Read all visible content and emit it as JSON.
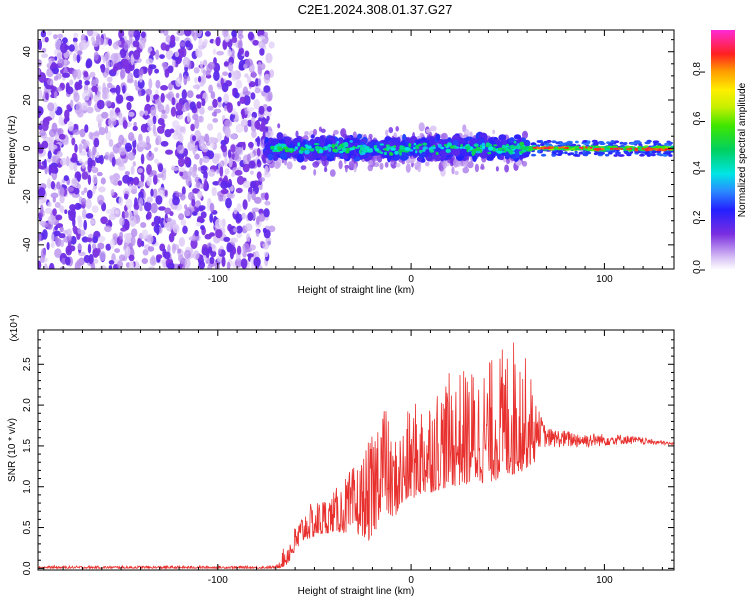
{
  "title": "C2E1.2024.308.01.37.G27",
  "chart_data": [
    {
      "type": "heatmap",
      "xlabel": "Height of straight line (km)",
      "ylabel": "Frequency (Hz)",
      "xlim": [
        -193,
        136
      ],
      "ylim": [
        -50,
        49
      ],
      "xticks": [
        "-100",
        "0",
        "100"
      ],
      "yticks": [
        "-40",
        "-20",
        "0",
        "20",
        "40"
      ],
      "colorbar": {
        "label": "Normalized spectral amplitude",
        "range": [
          0,
          0.97
        ],
        "ticks": [
          "0.0",
          "0.2",
          "0.4",
          "0.6",
          "0.8"
        ]
      },
      "regions": [
        {
          "x": [
            -193,
            -75
          ],
          "freq_spread": [
            -50,
            49
          ],
          "amplitude": [
            0.0,
            0.18
          ],
          "pattern": "random noise"
        },
        {
          "x": [
            -75,
            60
          ],
          "freq_spread": [
            -12,
            10
          ],
          "amplitude": [
            0.1,
            0.55
          ],
          "pattern": "noisy signal band"
        },
        {
          "x": [
            60,
            136
          ],
          "freq_spread": [
            -3,
            3
          ],
          "amplitude": [
            0.5,
            0.95
          ],
          "pattern": "narrow strong tone"
        }
      ]
    },
    {
      "type": "line",
      "xlabel": "Height of straight line (km)",
      "ylabel": "SNR (10 * v/v)",
      "yunit": "(x10⁴)",
      "xlim": [
        -193,
        136
      ],
      "ylim": [
        -0.02,
        2.92
      ],
      "xticks": [
        "-100",
        "0",
        "100"
      ],
      "yticks": [
        "0.0",
        "0.5",
        "1.0",
        "1.5",
        "2.0",
        "2.5"
      ],
      "color": "#e8312e",
      "envelope": {
        "x": [
          -193,
          -100,
          -70,
          -65,
          -55,
          -40,
          -25,
          -20,
          -15,
          -10,
          0,
          20,
          40,
          55,
          70,
          90,
          110,
          136
        ],
        "low": [
          0.0,
          0.0,
          0.0,
          0.02,
          0.35,
          0.45,
          0.4,
          0.3,
          0.75,
          0.6,
          0.85,
          1.0,
          1.05,
          1.15,
          1.4,
          1.42,
          1.48,
          1.5
        ],
        "high": [
          0.03,
          0.03,
          0.03,
          0.3,
          0.75,
          0.95,
          1.4,
          1.65,
          2.35,
          1.55,
          2.0,
          2.4,
          2.55,
          2.9,
          1.8,
          1.72,
          1.68,
          1.55
        ]
      }
    }
  ]
}
